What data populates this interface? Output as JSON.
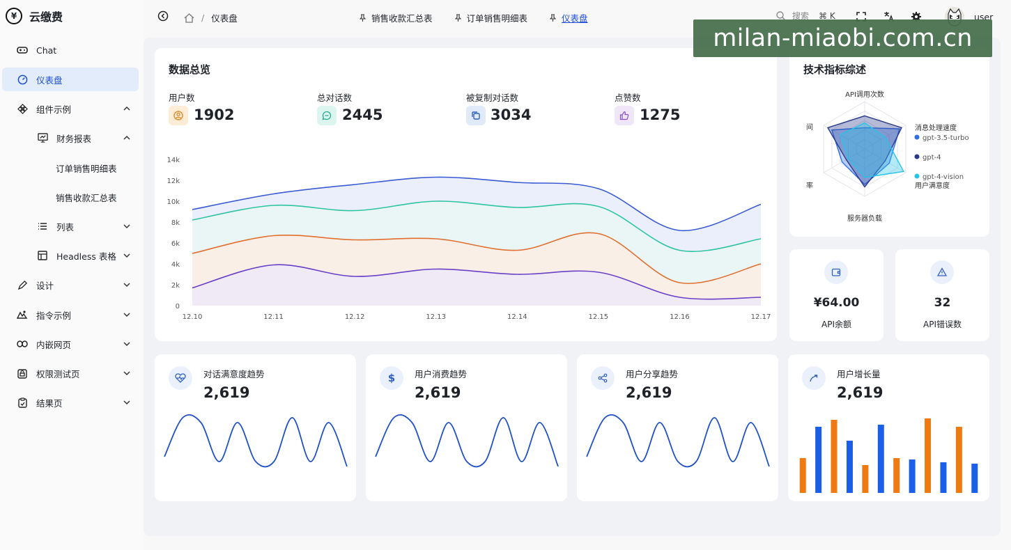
{
  "app": {
    "title": "云缴费"
  },
  "sidebar": {
    "items": [
      {
        "label": "Chat",
        "icon": "gamepad-icon"
      },
      {
        "label": "仪表盘",
        "icon": "gauge-icon",
        "active": true
      },
      {
        "label": "组件示例",
        "icon": "components-icon",
        "expanded": true
      },
      {
        "label": "财务报表",
        "icon": "monitor-icon",
        "expanded": true
      },
      {
        "label": "订单销售明细表"
      },
      {
        "label": "销售收款汇总表"
      },
      {
        "label": "列表",
        "icon": "list-icon"
      },
      {
        "label": "Headless 表格",
        "icon": "table-icon"
      },
      {
        "label": "设计",
        "icon": "pen-icon"
      },
      {
        "label": "指令示例",
        "icon": "directive-icon"
      },
      {
        "label": "内嵌网页",
        "icon": "link-icon"
      },
      {
        "label": "权限测试页",
        "icon": "lock-icon"
      },
      {
        "label": "结果页",
        "icon": "clipboard-icon"
      }
    ]
  },
  "header": {
    "breadcrumb": [
      "仪表盘"
    ],
    "tabs": [
      {
        "label": "销售收款汇总表"
      },
      {
        "label": "订单销售明细表"
      },
      {
        "label": "仪表盘",
        "active": true
      }
    ],
    "search_placeholder": "搜索",
    "shortcut": "⌘ K",
    "username": "user"
  },
  "overview": {
    "title": "数据总览",
    "stats": [
      {
        "label": "用户数",
        "value": "1902",
        "icon": "user-icon",
        "color": "#f0a040"
      },
      {
        "label": "总对话数",
        "value": "2445",
        "icon": "chat-bubble-icon",
        "color": "#2bb8a0"
      },
      {
        "label": "被复制对话数",
        "value": "3034",
        "icon": "copy-icon",
        "color": "#3a6fd8"
      },
      {
        "label": "点赞数",
        "value": "1275",
        "icon": "thumbs-up-icon",
        "color": "#8a5cd0"
      }
    ]
  },
  "chart_data": [
    {
      "type": "area",
      "x": [
        "12.10",
        "12.11",
        "12.12",
        "12.13",
        "12.14",
        "12.15",
        "12.16",
        "12.17"
      ],
      "ylim": [
        0,
        14000
      ],
      "yticks": [
        "0",
        "2k",
        "4k",
        "6k",
        "8k",
        "10k",
        "12k",
        "14k"
      ],
      "series": [
        {
          "color": "#3b5bd6",
          "fill": "#e6ecfa",
          "values": [
            9200,
            10700,
            11600,
            12300,
            11800,
            11200,
            7200,
            9700
          ]
        },
        {
          "color": "#2ec4a2",
          "fill": "#eaf6f5",
          "values": [
            8200,
            9600,
            9100,
            10000,
            9400,
            9500,
            5300,
            6400
          ]
        },
        {
          "color": "#e07030",
          "fill": "#fbede4",
          "values": [
            5000,
            6700,
            6300,
            6400,
            5300,
            6900,
            2200,
            4000
          ]
        },
        {
          "color": "#6a3fc8",
          "fill": "#efe9f8",
          "values": [
            1700,
            3900,
            2800,
            3500,
            3000,
            3200,
            800,
            800
          ]
        }
      ]
    },
    {
      "type": "radar",
      "title": "技术指标综述",
      "indicators": [
        "API调用次数",
        "消息处理速度",
        "用户满意度",
        "服务器负载",
        "效率",
        "时间"
      ],
      "indicator_labels_shown": [
        "API调用次数",
        "消息处理速度",
        "用户满意度",
        "服务器负载",
        "率",
        "间"
      ],
      "series": [
        {
          "name": "gpt-3.5-turbo",
          "color": "#2f6fe8",
          "values": [
            0.45,
            0.85,
            0.6,
            0.75,
            0.55,
            0.8
          ]
        },
        {
          "name": "gpt-4",
          "color": "#2a3a8a",
          "values": [
            0.7,
            0.9,
            0.5,
            0.8,
            0.45,
            0.9
          ]
        },
        {
          "name": "gpt-4-vision",
          "color": "#27c4e8",
          "values": [
            0.55,
            0.5,
            0.95,
            0.6,
            0.4,
            0.6
          ]
        }
      ]
    },
    {
      "type": "line",
      "title": "对话满意度趋势",
      "color": "#2050c8",
      "values": [
        0.2,
        1.0,
        0.9,
        0.1,
        0.9,
        0.1,
        0.1,
        1.0,
        0.1,
        0.9,
        0.0
      ]
    },
    {
      "type": "line",
      "title": "用户消费趋势",
      "color": "#2050c8",
      "values": [
        0.2,
        1.0,
        0.9,
        0.1,
        0.9,
        0.1,
        0.1,
        1.0,
        0.1,
        0.9,
        0.0
      ]
    },
    {
      "type": "line",
      "title": "用户分享趋势",
      "color": "#2050c8",
      "values": [
        0.2,
        1.0,
        0.9,
        0.1,
        0.9,
        0.1,
        0.1,
        1.0,
        0.1,
        0.9,
        0.0
      ]
    },
    {
      "type": "bar",
      "title": "用户增长量",
      "values": [
        50,
        95,
        105,
        75,
        40,
        98,
        50,
        48,
        107,
        44,
        95,
        42
      ],
      "colors": [
        "#f07a12",
        "#1b5fe8",
        "#f07a12",
        "#1b5fe8",
        "#f07a12",
        "#1b5fe8",
        "#f07a12",
        "#1b5fe8",
        "#f07a12",
        "#1b5fe8",
        "#f07a12",
        "#1b5fe8"
      ]
    }
  ],
  "api": {
    "balance_label": "API余额",
    "balance_value": "¥64.00",
    "errors_label": "API错误数",
    "errors_value": "32"
  },
  "mini_cards": [
    {
      "title": "对话满意度趋势",
      "value": "2,619",
      "icon": "heart-pulse-icon"
    },
    {
      "title": "用户消费趋势",
      "value": "2,619",
      "icon": "dollar-icon"
    },
    {
      "title": "用户分享趋势",
      "value": "2,619",
      "icon": "share-icon"
    },
    {
      "title": "用户增长量",
      "value": "2,619",
      "icon": "growth-icon"
    }
  ],
  "watermark": "milan-miaobi.com.cn"
}
